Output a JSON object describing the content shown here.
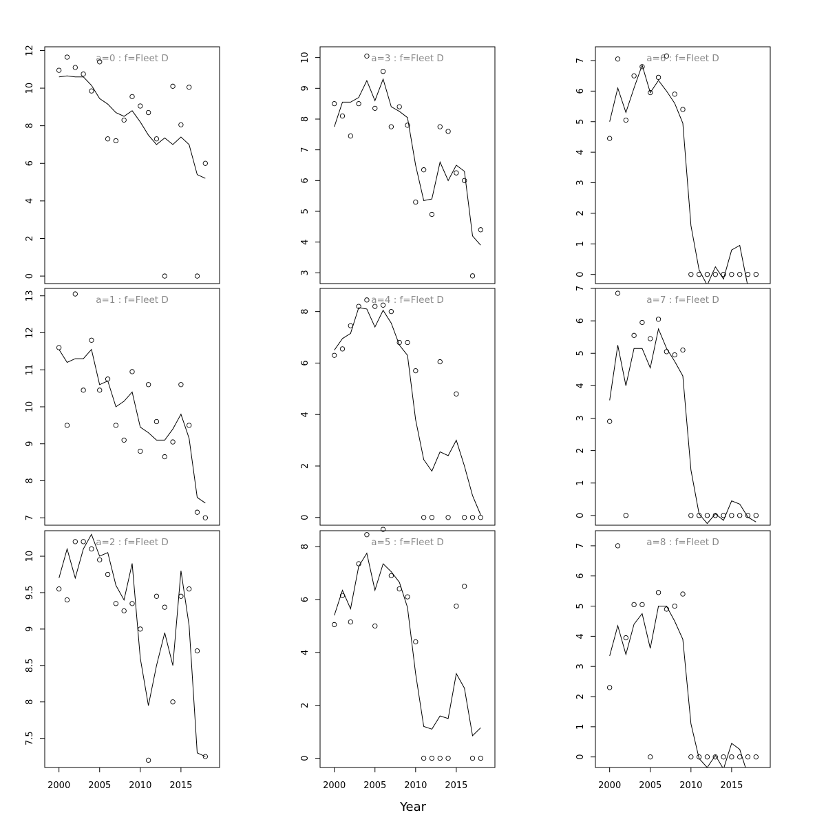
{
  "chart_data": {
    "type": "scatter",
    "xlabel": "Year",
    "x": [
      2000,
      2001,
      2002,
      2003,
      2004,
      2005,
      2006,
      2007,
      2008,
      2009,
      2010,
      2011,
      2012,
      2013,
      2014,
      2015,
      2016,
      2017,
      2018
    ],
    "xticks": [
      2000,
      2005,
      2010,
      2015
    ],
    "style": {
      "observed": "open circles",
      "fitted": "solid line",
      "title_color": "#8a8a8a"
    },
    "panels": [
      {
        "title": "a=0  :  f=Fleet D",
        "ylim": [
          -0.4,
          12.2
        ],
        "yticks": [
          0,
          2,
          4,
          6,
          8,
          10,
          12
        ],
        "observed": [
          10.95,
          11.65,
          11.1,
          10.75,
          9.85,
          11.4,
          7.3,
          7.2,
          8.3,
          9.55,
          9.05,
          8.7,
          7.3,
          0,
          10.1,
          8.05,
          10.05,
          0,
          6.0
        ],
        "fitted": [
          10.6,
          10.65,
          10.6,
          10.6,
          10.15,
          9.45,
          9.15,
          8.7,
          8.5,
          8.8,
          8.2,
          7.5,
          7.0,
          7.35,
          7.0,
          7.4,
          7.0,
          5.4,
          5.2
        ]
      },
      {
        "title": "a=1  :  f=Fleet D",
        "ylim": [
          6.8,
          13.2
        ],
        "yticks": [
          7,
          8,
          9,
          10,
          11,
          12,
          13
        ],
        "observed": [
          11.6,
          9.5,
          13.05,
          10.45,
          11.8,
          10.45,
          10.75,
          9.5,
          9.1,
          10.95,
          8.8,
          10.6,
          9.6,
          8.65,
          9.05,
          10.6,
          9.5,
          7.15,
          7.0
        ],
        "fitted": [
          11.55,
          11.2,
          11.3,
          11.3,
          11.55,
          10.6,
          10.7,
          10.0,
          10.15,
          10.4,
          9.45,
          9.3,
          9.1,
          9.1,
          9.4,
          9.8,
          9.15,
          7.55,
          7.4
        ]
      },
      {
        "title": "a=2  :  f=Fleet D",
        "ylim": [
          7.1,
          10.35
        ],
        "yticks": [
          7.5,
          8.0,
          8.5,
          9.0,
          9.5,
          10.0
        ],
        "observed": [
          9.55,
          9.4,
          10.2,
          10.2,
          10.1,
          9.95,
          9.75,
          9.35,
          9.25,
          9.35,
          9.0,
          7.2,
          9.45,
          9.3,
          8.0,
          9.45,
          9.55,
          8.7,
          7.25
        ],
        "fitted": [
          9.7,
          10.1,
          9.7,
          10.1,
          10.3,
          10.0,
          10.05,
          9.6,
          9.4,
          9.9,
          8.6,
          7.95,
          8.5,
          8.95,
          8.5,
          9.8,
          9.05,
          7.3,
          7.25
        ]
      },
      {
        "title": "a=3  :  f=Fleet D",
        "ylim": [
          2.65,
          10.35
        ],
        "yticks": [
          3,
          4,
          5,
          6,
          7,
          8,
          9,
          10
        ],
        "observed": [
          8.5,
          8.1,
          7.45,
          8.5,
          10.05,
          8.35,
          9.55,
          7.75,
          8.4,
          7.8,
          5.3,
          6.35,
          4.9,
          7.75,
          7.6,
          6.25,
          6.0,
          2.9,
          4.4
        ],
        "fitted": [
          7.75,
          8.55,
          8.55,
          8.7,
          9.25,
          8.6,
          9.3,
          8.4,
          8.25,
          8.05,
          6.5,
          5.35,
          5.4,
          6.6,
          6.0,
          6.5,
          6.3,
          4.2,
          3.9
        ]
      },
      {
        "title": "a=4  :  f=Fleet D",
        "ylim": [
          -0.3,
          8.9
        ],
        "yticks": [
          0,
          2,
          4,
          6,
          8
        ],
        "observed": [
          6.3,
          6.55,
          7.45,
          8.2,
          8.45,
          8.2,
          8.25,
          8.0,
          6.8,
          6.8,
          5.7,
          0,
          0,
          6.05,
          0,
          4.8,
          0,
          0,
          0
        ],
        "fitted": [
          6.5,
          6.95,
          7.15,
          8.15,
          8.1,
          7.4,
          8.05,
          7.55,
          6.7,
          6.3,
          3.8,
          2.25,
          1.8,
          2.55,
          2.4,
          3.0,
          2.0,
          0.85,
          0.1
        ]
      },
      {
        "title": "a=5  :  f=Fleet D",
        "ylim": [
          -0.35,
          8.6
        ],
        "yticks": [
          0,
          2,
          4,
          6,
          8
        ],
        "observed": [
          5.05,
          6.15,
          5.15,
          7.35,
          8.45,
          5.0,
          8.65,
          6.9,
          6.4,
          6.1,
          4.4,
          0,
          0,
          0,
          0,
          5.75,
          6.5,
          0,
          0
        ],
        "fitted": [
          5.4,
          6.35,
          5.65,
          7.25,
          7.75,
          6.35,
          7.35,
          7.05,
          6.65,
          5.7,
          3.2,
          1.2,
          1.1,
          1.6,
          1.5,
          3.2,
          2.65,
          0.85,
          1.15
        ]
      },
      {
        "title": "a=6  :  f=Fleet D",
        "ylim": [
          -0.3,
          7.45
        ],
        "yticks": [
          0,
          1,
          2,
          3,
          4,
          5,
          6,
          7
        ],
        "observed": [
          4.45,
          7.05,
          5.05,
          6.5,
          6.8,
          5.95,
          6.45,
          7.15,
          5.9,
          5.4,
          0,
          0,
          0,
          0,
          0,
          0,
          0,
          0,
          0
        ],
        "fitted": [
          5.0,
          6.1,
          5.3,
          6.1,
          6.85,
          5.95,
          6.35,
          6.0,
          5.6,
          4.95,
          1.6,
          0.15,
          -0.35,
          0.25,
          -0.15,
          0.8,
          0.95,
          -0.4,
          -0.6
        ]
      },
      {
        "title": "a=7  :  f=Fleet D",
        "ylim": [
          -0.3,
          7.0
        ],
        "yticks": [
          0,
          1,
          2,
          3,
          4,
          5,
          6,
          7
        ],
        "observed": [
          2.9,
          6.85,
          0,
          5.55,
          5.95,
          5.45,
          6.05,
          5.05,
          4.95,
          5.1,
          0,
          0,
          0,
          0,
          0,
          0,
          0,
          0,
          0
        ],
        "fitted": [
          3.55,
          5.25,
          4.0,
          5.15,
          5.15,
          4.55,
          5.75,
          5.15,
          4.75,
          4.3,
          1.4,
          0.05,
          -0.25,
          0.05,
          -0.15,
          0.45,
          0.35,
          -0.05,
          -0.2
        ]
      },
      {
        "title": "a=8  :  f=Fleet D",
        "ylim": [
          -0.35,
          7.5
        ],
        "yticks": [
          0,
          1,
          2,
          3,
          4,
          5,
          6,
          7
        ],
        "observed": [
          2.3,
          7.0,
          3.95,
          5.05,
          5.05,
          0,
          5.45,
          4.9,
          5.0,
          5.4,
          0,
          0,
          0,
          0,
          0,
          0,
          0,
          0,
          0
        ],
        "fitted": [
          3.35,
          4.35,
          3.4,
          4.4,
          4.75,
          3.6,
          5.0,
          5.0,
          4.5,
          3.9,
          1.1,
          -0.05,
          -0.35,
          0.05,
          -0.4,
          0.45,
          0.25,
          -0.6,
          -0.7
        ]
      }
    ]
  }
}
